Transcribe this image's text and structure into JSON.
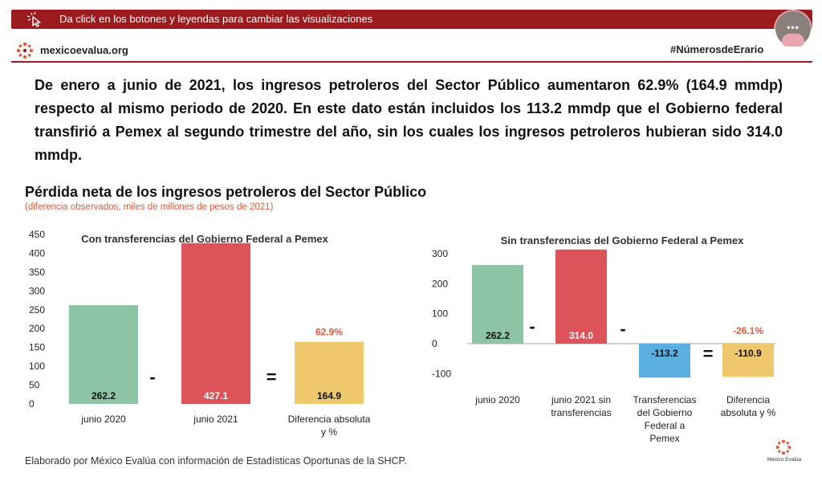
{
  "banner": {
    "text": "Da click en los botones y leyendas para cambiar las visualizaciones"
  },
  "brand": {
    "name": "mexicoevalua.org",
    "hashtag": "#NúmerosdeErario",
    "footer_name": "México Evalúa"
  },
  "avatar": {
    "dots": "•••"
  },
  "headline": "De enero a junio de 2021, los ingresos petroleros del Sector Público aumentaron 62.9% (164.9 mmdp) respecto al mismo periodo de 2020. En este dato están incluidos los 113.2 mmdp que el Gobierno federal transfirió a Pemex al segundo trimestre del año, sin los cuales los ingresos petroleros hubieran sido 314.0 mmdp.",
  "chart": {
    "title": "Pérdida neta de los ingresos petroleros del Sector Público",
    "subtitle": "(diferencia observados, miles de millones de pesos de 2021)"
  },
  "note": "Elaborado por México Evalúa con información de Estadísticas Oportunas de la SHCP.",
  "colors": {
    "green": "#8dc4a5",
    "red": "#dc5359",
    "yellow": "#efc76c",
    "blue": "#5aaee0",
    "accent": "#e05a3a",
    "brand": "#9b1b1e"
  },
  "chart_data": [
    {
      "type": "bar",
      "title": "Con transferencias del Gobierno Federal a Pemex",
      "categories": [
        "junio 2020",
        "junio 2021",
        "Diferencia absoluta y %"
      ],
      "values": [
        262.2,
        427.1,
        164.9
      ],
      "value_labels": [
        "262.2",
        "427.1",
        "164.9"
      ],
      "colors": [
        "#8dc4a5",
        "#dc5359",
        "#efc76c"
      ],
      "operators": [
        "-",
        "="
      ],
      "annotation": "62.9%",
      "yticks": [
        "450",
        "400",
        "350",
        "300",
        "250",
        "200",
        "150",
        "100",
        "50",
        "0"
      ],
      "ylim": [
        0,
        450
      ],
      "grid": false
    },
    {
      "type": "bar",
      "title": "Sin transferencias del Gobierno Federal a Pemex",
      "categories": [
        "junio 2020",
        "junio 2021 sin transferencias",
        "Transferencias del Gobierno Federal a Pemex",
        "Diferencia absoluta y %"
      ],
      "values": [
        262.2,
        314.0,
        -113.2,
        -110.9
      ],
      "value_labels": [
        "262.2",
        "314.0",
        "-113.2",
        "-110.9"
      ],
      "colors": [
        "#8dc4a5",
        "#dc5359",
        "#5aaee0",
        "#efc76c"
      ],
      "operators": [
        "-",
        "-",
        "="
      ],
      "annotation": "-26.1%",
      "yticks": [
        "300",
        "200",
        "100",
        "0",
        "-100"
      ],
      "ylim": [
        -100,
        300
      ],
      "grid": false
    }
  ]
}
